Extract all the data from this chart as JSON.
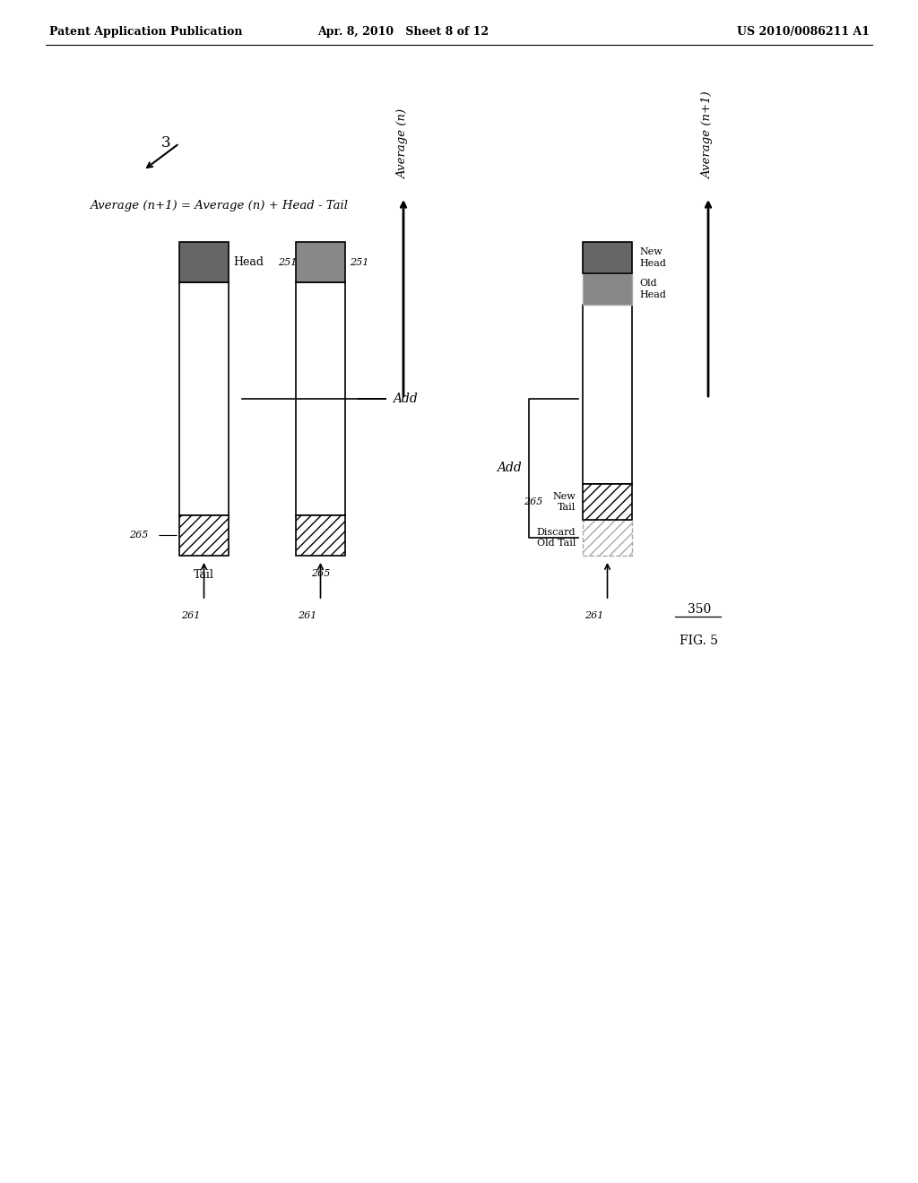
{
  "header_left": "Patent Application Publication",
  "header_mid": "Apr. 8, 2010   Sheet 8 of 12",
  "header_right": "US 2010/0086211 A1",
  "fig_label": "FIG. 5",
  "fig_number": "350",
  "corner_label": "3",
  "formula": "Average (n+1) = Average (n) + Head - Tail",
  "bar1_label_top": "Head",
  "bar1_label_bottom": "Tail",
  "bar1_ref_top": "251",
  "bar1_ref_bottom": "265",
  "bar1_arrow": "261",
  "bar2_ref_top": "251",
  "bar2_ref_bottom": "265",
  "bar2_arrow": "261",
  "bar3_label_top1": "Old\nHead",
  "bar3_label_top2": "New\nHead",
  "bar3_label_bottom1": "Discard\nOld Tail",
  "bar3_label_bottom2": "New\nTail",
  "bar3_ref_bottom": "265",
  "bar3_arrow": "261",
  "avg_n_label": "Average (n)",
  "avg_n1_label": "Average (n+1)",
  "add_label1": "Add",
  "add_label2": "Add",
  "background_color": "#ffffff",
  "bar_fill_color": "#ffffff",
  "hatch_color": "#555555",
  "dark_fill_color": "#666666",
  "medium_fill_color": "#888888",
  "border_color": "#000000"
}
